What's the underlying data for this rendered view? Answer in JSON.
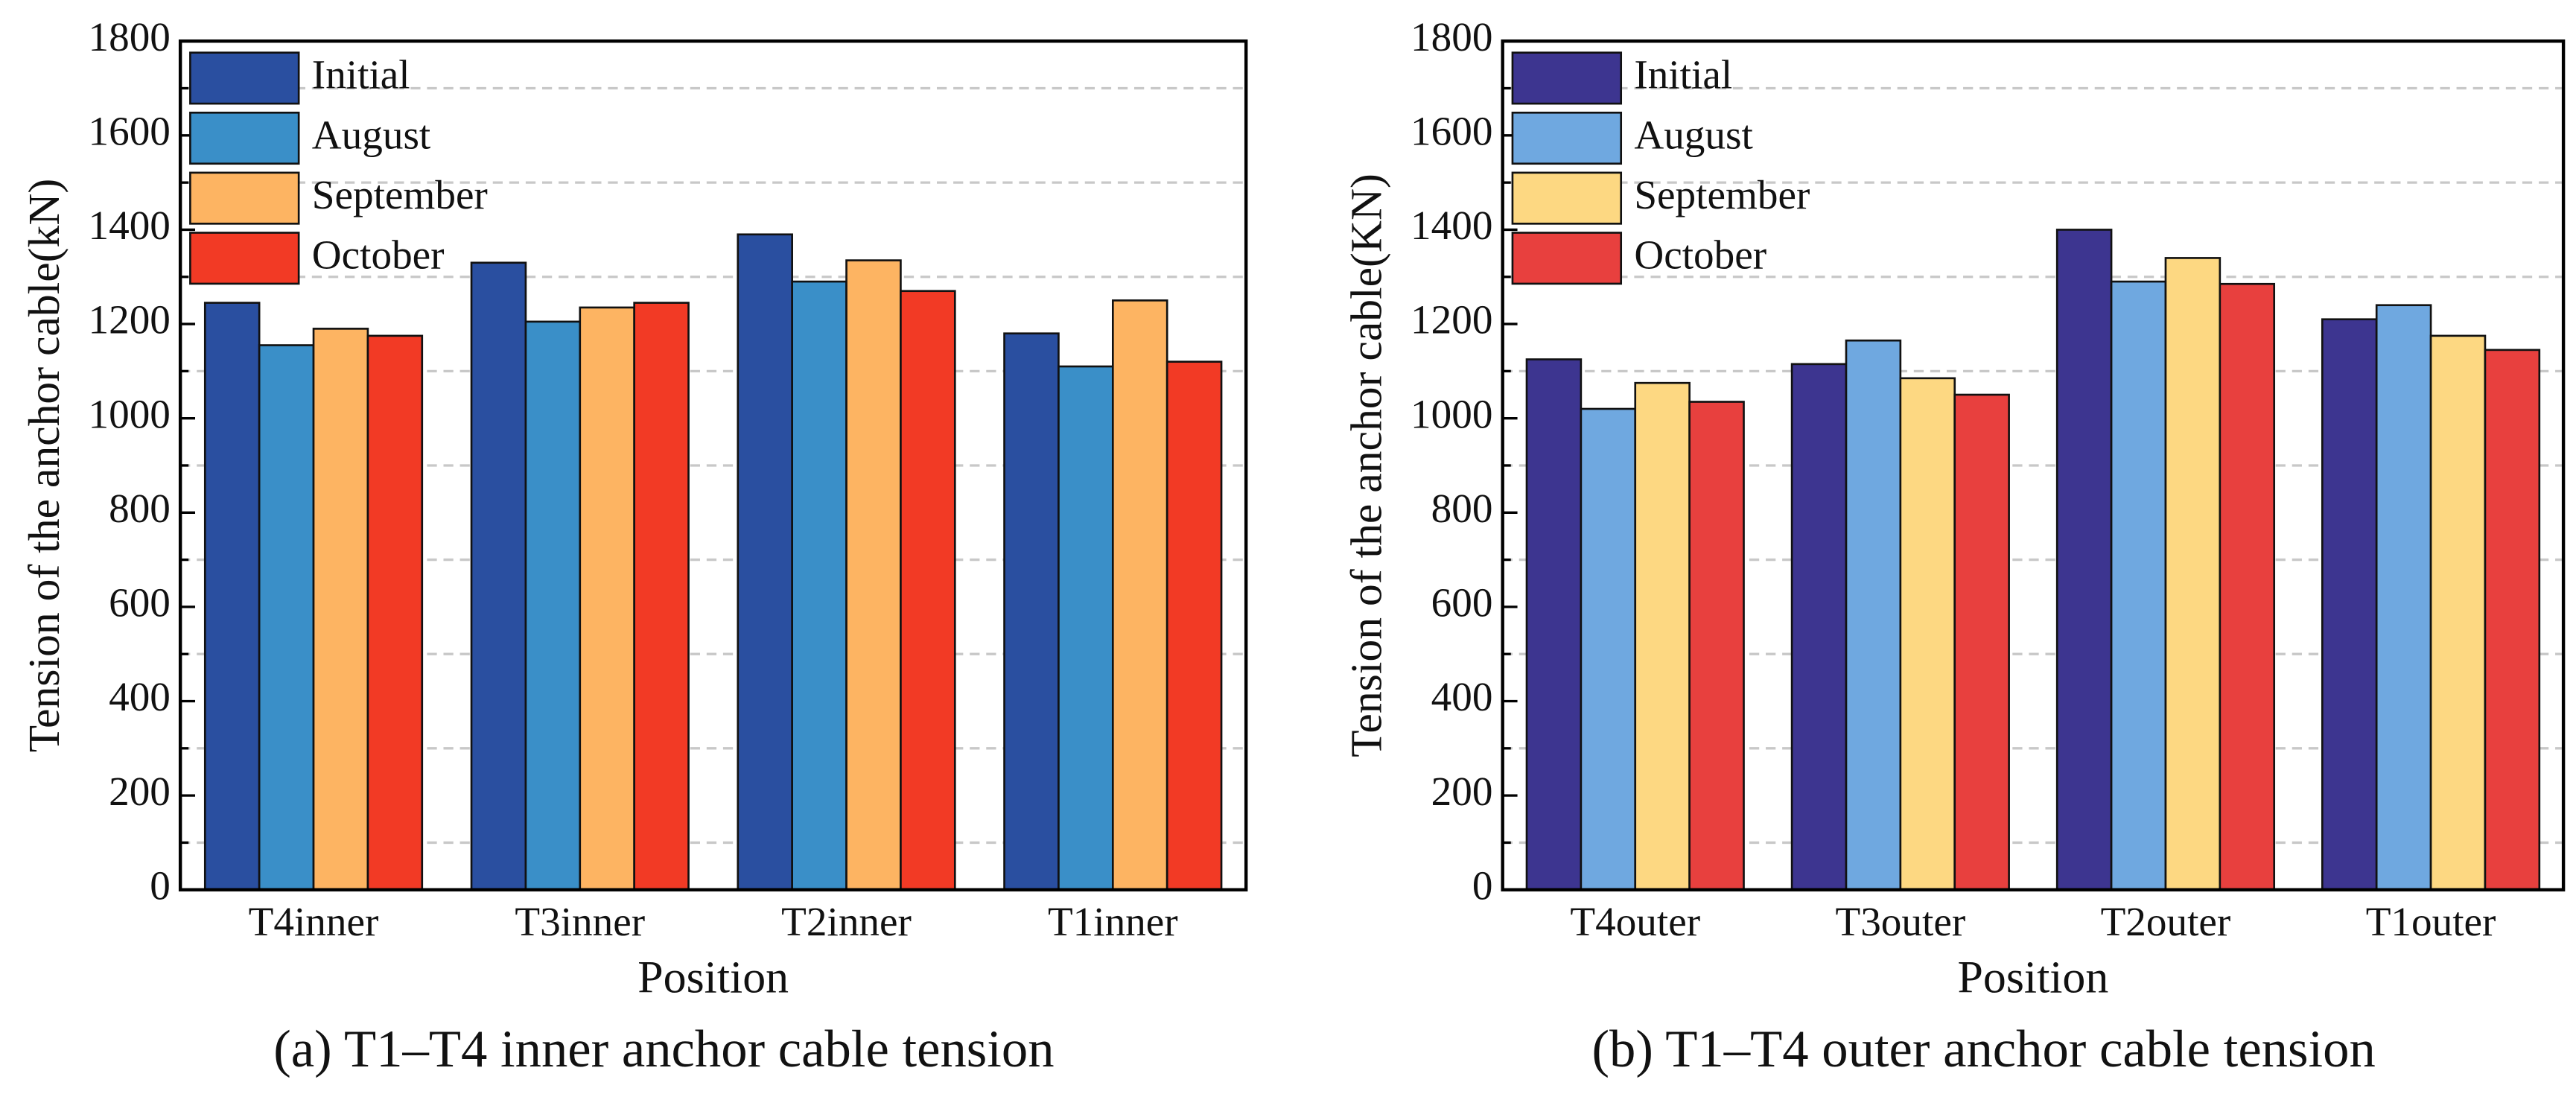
{
  "chart_data": [
    {
      "type": "bar",
      "title": "(a) T1–T4 inner anchor cable tension",
      "x_label": "Position",
      "y_label": "Tension of the anchor cable(kN)",
      "categories": [
        "T4inner",
        "T3inner",
        "T2inner",
        "T1inner"
      ],
      "series": [
        {
          "name": "Initial",
          "color": "#2a4fa0",
          "values": [
            1245,
            1330,
            1390,
            1180
          ]
        },
        {
          "name": "August",
          "color": "#3a8fc8",
          "values": [
            1155,
            1205,
            1290,
            1110
          ]
        },
        {
          "name": "September",
          "color": "#fdb462",
          "values": [
            1190,
            1235,
            1335,
            1250
          ]
        },
        {
          "name": "October",
          "color": "#f23a25",
          "values": [
            1175,
            1245,
            1270,
            1120
          ]
        }
      ],
      "ylim": [
        0,
        1800
      ],
      "yticks": [
        0,
        200,
        400,
        600,
        800,
        1000,
        1200,
        1400,
        1600,
        1800
      ],
      "grid_lines": [
        100,
        300,
        500,
        700,
        900,
        1100,
        1300,
        1500,
        1700
      ],
      "legend": "upper left"
    },
    {
      "type": "bar",
      "title": "(b) T1–T4 outer anchor cable tension",
      "x_label": "Position",
      "y_label": "Tension of the anchor cable(KN)",
      "categories": [
        "T4outer",
        "T3outer",
        "T2outer",
        "T1outer"
      ],
      "series": [
        {
          "name": "Initial",
          "color": "#3d3590",
          "values": [
            1125,
            1115,
            1400,
            1210
          ]
        },
        {
          "name": "August",
          "color": "#6fa8e0",
          "values": [
            1020,
            1165,
            1290,
            1240
          ]
        },
        {
          "name": "September",
          "color": "#fdd882",
          "values": [
            1075,
            1085,
            1340,
            1175
          ]
        },
        {
          "name": "October",
          "color": "#e8403e",
          "values": [
            1035,
            1050,
            1285,
            1145
          ]
        }
      ],
      "ylim": [
        0,
        1800
      ],
      "yticks": [
        0,
        200,
        400,
        600,
        800,
        1000,
        1200,
        1400,
        1600,
        1800
      ],
      "grid_lines": [
        100,
        300,
        500,
        700,
        900,
        1100,
        1300,
        1500,
        1700
      ],
      "legend": "upper left"
    }
  ]
}
